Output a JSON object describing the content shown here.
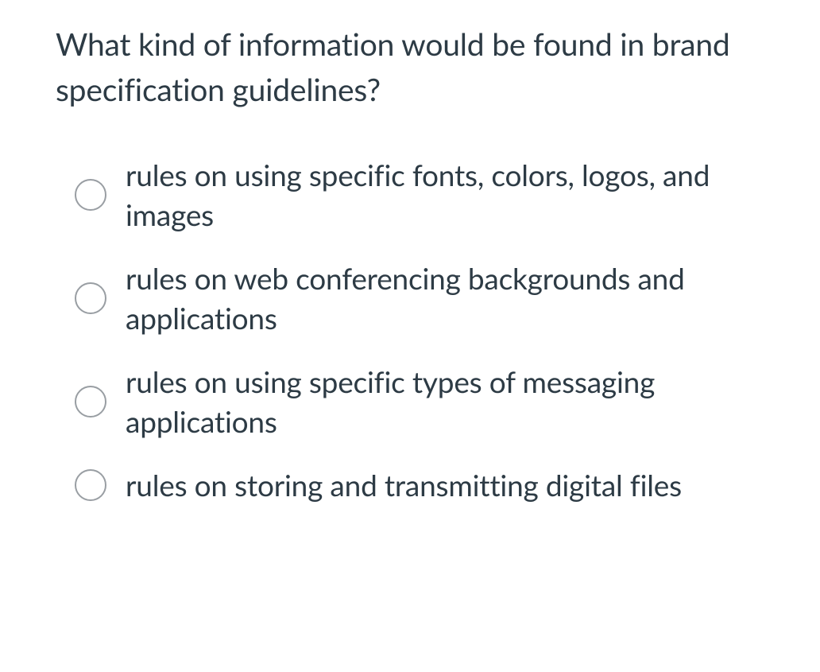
{
  "question": {
    "text": "What kind of information would be found in brand specification guidelines?"
  },
  "options": [
    {
      "label": "rules on using specific fonts, colors, logos, and images"
    },
    {
      "label": "rules on web conferencing backgrounds and applications"
    },
    {
      "label": "rules on using specific types of messaging applications"
    },
    {
      "label": "rules on storing and transmitting digital files"
    }
  ],
  "styling": {
    "text_color": "#2d3b45",
    "radio_border_color": "#999ea3",
    "background_color": "#ffffff",
    "question_fontsize": 39,
    "option_fontsize": 37,
    "radio_size": 40
  }
}
